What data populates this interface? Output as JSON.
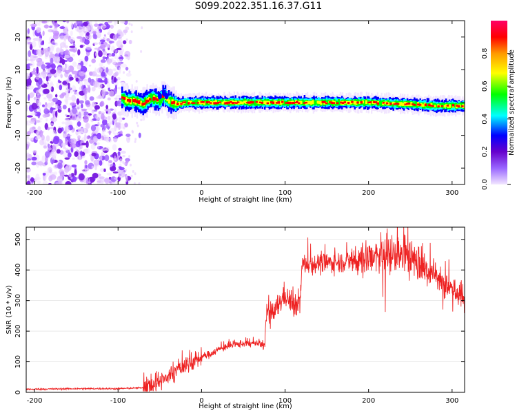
{
  "title": "S099.2022.351.16.37.G11",
  "chart_data": [
    {
      "type": "heatmap",
      "xlabel": "Height of straight line (km)",
      "ylabel": "Frequency (Hz)",
      "xlim": [
        -210,
        315
      ],
      "ylim": [
        -25,
        25
      ],
      "xticks": [
        -200,
        -100,
        0,
        100,
        200,
        300
      ],
      "yticks": [
        -20,
        -10,
        0,
        10,
        20
      ],
      "colorbar": {
        "label": "Normalized spectral amplitude",
        "range": [
          0.0,
          1.0
        ],
        "ticks": [
          "0.0",
          "0.2",
          "0.4",
          "0.6",
          "0.8"
        ],
        "colormap": [
          "#f2e6ff",
          "#9966ff",
          "#6600cc",
          "#0000ff",
          "#00ffff",
          "#00ff00",
          "#ffff00",
          "#ff9900",
          "#ff0000",
          "#ff0066"
        ]
      },
      "noise_region_x": [
        -210,
        -95
      ],
      "ridge": {
        "x": [
          -95,
          -90,
          -80,
          -70,
          -60,
          -50,
          -45,
          -40,
          -30,
          -20,
          0,
          50,
          100,
          150,
          200,
          250,
          280,
          315
        ],
        "y": [
          1.5,
          0.5,
          0.5,
          -0.5,
          1.5,
          0.5,
          2.5,
          0.5,
          -0.5,
          0,
          0,
          0,
          0,
          0,
          0,
          -0.5,
          -1,
          -1
        ]
      }
    },
    {
      "type": "line",
      "xlabel": "Height of straight line (km)",
      "ylabel": "SNR (10 * v/v)",
      "xlim": [
        -210,
        315
      ],
      "ylim": [
        0,
        540
      ],
      "xticks": [
        -200,
        -100,
        0,
        100,
        200,
        300
      ],
      "yticks": [
        0,
        100,
        200,
        300,
        400,
        500
      ],
      "color": "#ee2222",
      "series": [
        {
          "x": [
            -210,
            -150,
            -100,
            -70,
            -60,
            -50,
            -40,
            -30,
            -20,
            -10,
            0,
            10,
            20,
            30,
            40,
            50,
            60,
            70,
            75,
            78,
            85,
            95,
            100,
            110,
            118,
            120,
            122,
            140,
            160,
            180,
            200,
            220,
            240,
            250,
            260,
            280,
            300,
            315
          ],
          "y": [
            10,
            12,
            12,
            15,
            20,
            30,
            50,
            70,
            90,
            100,
            115,
            125,
            140,
            150,
            155,
            160,
            160,
            158,
            150,
            260,
            250,
            300,
            320,
            280,
            300,
            400,
            420,
            420,
            425,
            430,
            440,
            445,
            450,
            445,
            420,
            380,
            340,
            300
          ]
        }
      ]
    }
  ]
}
